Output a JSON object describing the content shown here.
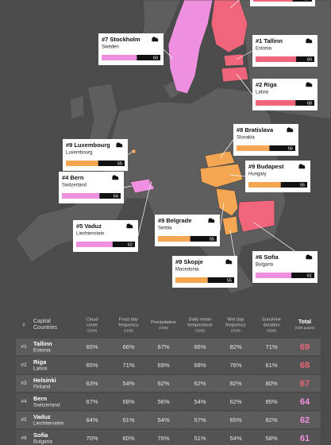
{
  "map": {
    "callouts": [
      {
        "score": 67,
        "color": "#f0657a"
      },
      {
        "rank": "#7",
        "city": "Stockholm",
        "country": "Sweden",
        "score": 60,
        "color": "#ef8fdf"
      },
      {
        "rank": "#1",
        "city": "Tallinn",
        "country": "Estonia",
        "score": 69,
        "color": "#f0657a"
      },
      {
        "rank": "#2",
        "city": "Riga",
        "country": "Latvia",
        "score": 68,
        "color": "#f0657a"
      },
      {
        "rank": "#8",
        "city": "Bratislava",
        "country": "Slovakia",
        "score": 56,
        "color": "#f5a652"
      },
      {
        "rank": "#9",
        "city": "Luxembourg",
        "country": "Luxembourg",
        "score": 55,
        "color": "#f5a652"
      },
      {
        "rank": "#9",
        "city": "Budapest",
        "country": "Hungary",
        "score": 55,
        "color": "#f5a652"
      },
      {
        "rank": "#4",
        "city": "Bern",
        "country": "Switzerland",
        "score": 64,
        "color": "#ef8fdf"
      },
      {
        "rank": "#9",
        "city": "Belgrade",
        "country": "Serbia",
        "score": 55,
        "color": "#f5a652"
      },
      {
        "rank": "#5",
        "city": "Vaduz",
        "country": "Liechtenstein",
        "score": 62,
        "color": "#ef8fdf"
      },
      {
        "rank": "#9",
        "city": "Skopje",
        "country": "Macedonia",
        "score": 55,
        "color": "#f5a652"
      },
      {
        "rank": "#6",
        "city": "Sofia",
        "country": "Bulgaria",
        "score": 61,
        "color": "#ef8fdf"
      }
    ]
  },
  "table": {
    "header": {
      "rank": "#",
      "capital": "Capital",
      "countries": "Countries",
      "columns": [
        [
          "Cloud",
          "cover",
          "(/100)"
        ],
        [
          "Frost day",
          "frequency",
          "(/100)"
        ],
        [
          "Precipitation",
          "(/100)"
        ],
        [
          "Daily mean",
          "temperature",
          "(/100)"
        ],
        [
          "Wet day",
          "frequency",
          "(/100)"
        ],
        [
          "Sunshine",
          "duration",
          "(/100)"
        ]
      ],
      "total": "Total",
      "total_unit": "(/100 points)"
    },
    "rows": [
      {
        "rank": "#1",
        "city": "Tallinn",
        "country": "Estonia",
        "values": [
          "65%",
          "66%",
          "67%",
          "66%",
          "82%",
          "71%"
        ],
        "total": "69",
        "color": "#f0657a"
      },
      {
        "rank": "#2",
        "city": "Riga",
        "country": "Latvia",
        "values": [
          "65%",
          "71%",
          "69%",
          "68%",
          "76%",
          "61%"
        ],
        "total": "68",
        "color": "#f0657a"
      },
      {
        "rank": "#3",
        "city": "Helsinki",
        "country": "Finland",
        "values": [
          "63%",
          "54%",
          "62%",
          "62%",
          "82%",
          "80%"
        ],
        "total": "67",
        "color": "#f0657a"
      },
      {
        "rank": "#4",
        "city": "Bern",
        "country": "Switzerland",
        "values": [
          "67%",
          "58%",
          "56%",
          "54%",
          "62%",
          "85%"
        ],
        "total": "64",
        "color": "#ef8fdf"
      },
      {
        "rank": "#5",
        "city": "Vaduz",
        "country": "Liechtenstein",
        "values": [
          "64%",
          "51%",
          "54%",
          "57%",
          "65%",
          "82%"
        ],
        "total": "62",
        "color": "#ef8fdf"
      },
      {
        "rank": "#6",
        "city": "Sofia",
        "country": "Bulgaria",
        "values": [
          "70%",
          "60%",
          "76%",
          "51%",
          "54%",
          "58%"
        ],
        "total": "61",
        "color": "#ef8fdf"
      }
    ]
  }
}
